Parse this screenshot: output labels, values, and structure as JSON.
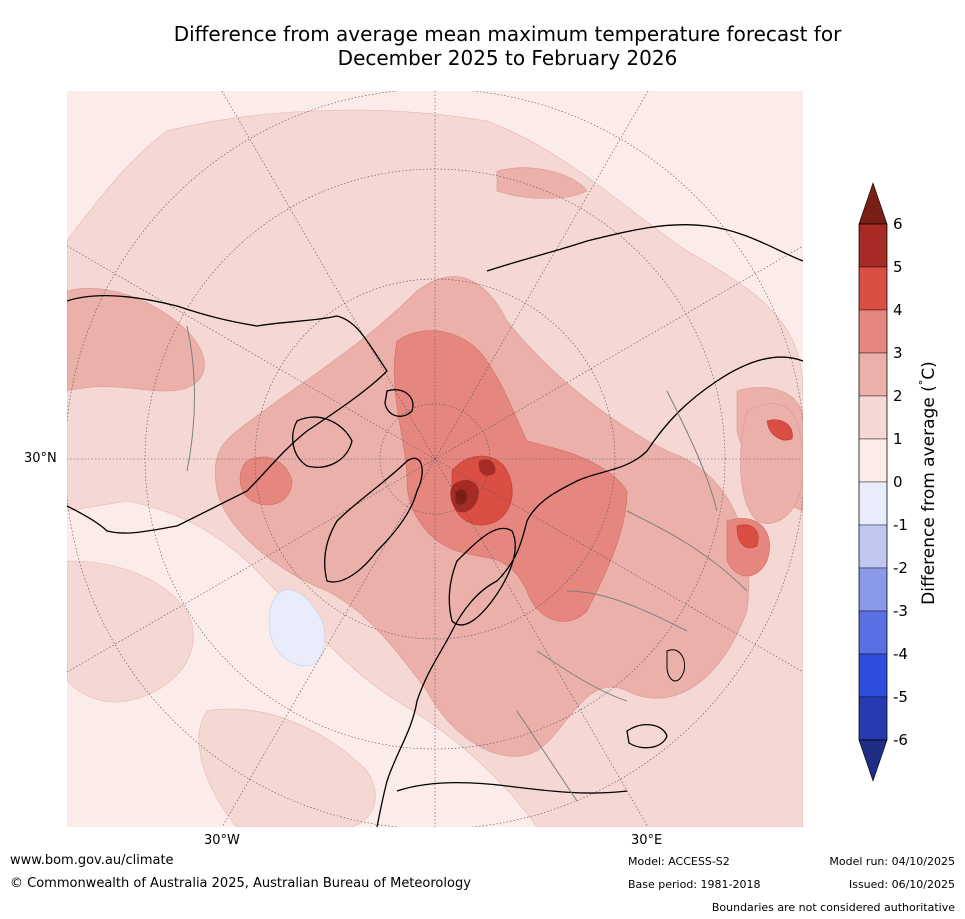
{
  "title": {
    "line1": "Difference from average mean maximum temperature forecast for",
    "line2": "December 2025 to February 2026"
  },
  "map": {
    "projection": "polar",
    "lat_label_left": "30°N",
    "lon_label_left": "30°W",
    "lon_label_right": "30°E",
    "land_outline_color": "#000000",
    "border_color": "#7f7f7f"
  },
  "colorbar": {
    "label": "Difference from average (°C)",
    "label_prefix": "Difference from average (",
    "label_degree": "°",
    "label_suffix": "C)",
    "ticks": [
      "6",
      "5",
      "4",
      "3",
      "2",
      "1",
      "0",
      "-1",
      "-2",
      "-3",
      "-4",
      "-5",
      "-6"
    ],
    "colors_top_to_bottom": [
      "#a82a24",
      "#db4e43",
      "#e5877e",
      "#ecb0aa",
      "#f5d7d3",
      "#fbebe9",
      "#e8ecfb",
      "#c0c8f2",
      "#8a9ae9",
      "#5870e2",
      "#2f4ddd",
      "#263bb0"
    ],
    "over_color": "#7a1e16",
    "under_color": "#1f2d86"
  },
  "footer": {
    "website": "www.bom.gov.au/climate",
    "copyright": "© Commonwealth of Australia 2025, Australian Bureau of Meteorology",
    "model": "Model: ACCESS-S2",
    "base_period": "Base period: 1981-2018",
    "model_run": "Model run: 04/10/2025",
    "issued": "Issued: 06/10/2025",
    "disclaimer": "Boundaries are not considered authoritative"
  }
}
